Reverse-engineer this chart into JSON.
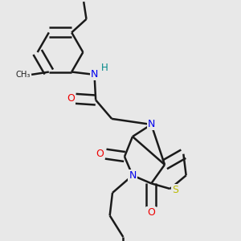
{
  "background_color": "#e8e8e8",
  "bond_color": "#1a1a1a",
  "atom_colors": {
    "N": "#0000ee",
    "O": "#ee0000",
    "S": "#bbbb00",
    "H": "#008888"
  },
  "bond_lw": 1.8,
  "dbl_sep": 0.018,
  "figsize": [
    3.0,
    3.0
  ],
  "dpi": 100
}
